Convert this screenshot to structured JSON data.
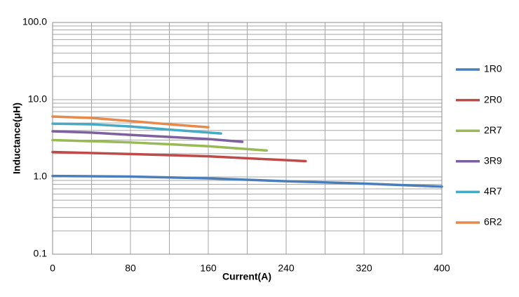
{
  "chart_data": {
    "type": "line",
    "xlabel": "Current(A)",
    "ylabel": "Inductance(μH)",
    "xlim": [
      0,
      400
    ],
    "xticks": [
      0,
      80,
      160,
      240,
      320,
      400
    ],
    "xminorticks": [
      40,
      120,
      200,
      280,
      360
    ],
    "ylim": [
      0.1,
      100
    ],
    "yticks": [
      {
        "value": 100,
        "label": "100.0"
      },
      {
        "value": 10,
        "label": "10.0"
      },
      {
        "value": 1,
        "label": "1.0"
      },
      0.1
    ],
    "ylog": true,
    "grid": true,
    "legend": "right",
    "series": [
      {
        "name": "1R0",
        "color": "#4a7ebb",
        "x": [
          0,
          80,
          160,
          240,
          320,
          400
        ],
        "values": [
          1.03,
          1.01,
          0.96,
          0.88,
          0.82,
          0.75
        ]
      },
      {
        "name": "2R0",
        "color": "#be4b48",
        "x": [
          0,
          80,
          160,
          260
        ],
        "values": [
          2.1,
          1.98,
          1.85,
          1.6
        ]
      },
      {
        "name": "2R7",
        "color": "#98b954",
        "x": [
          0,
          80,
          160,
          220
        ],
        "values": [
          3.0,
          2.8,
          2.5,
          2.2
        ]
      },
      {
        "name": "3R9",
        "color": "#7d60a0",
        "x": [
          0,
          40,
          80,
          160,
          195
        ],
        "values": [
          3.9,
          3.75,
          3.5,
          3.1,
          2.85
        ]
      },
      {
        "name": "4R7",
        "color": "#46aac5",
        "x": [
          0,
          40,
          80,
          120,
          173
        ],
        "values": [
          4.9,
          4.8,
          4.5,
          4.1,
          3.65
        ]
      },
      {
        "name": "6R2",
        "color": "#e6894a",
        "x": [
          0,
          40,
          80,
          120,
          160
        ],
        "values": [
          6.05,
          5.8,
          5.3,
          4.8,
          4.4
        ]
      }
    ]
  }
}
